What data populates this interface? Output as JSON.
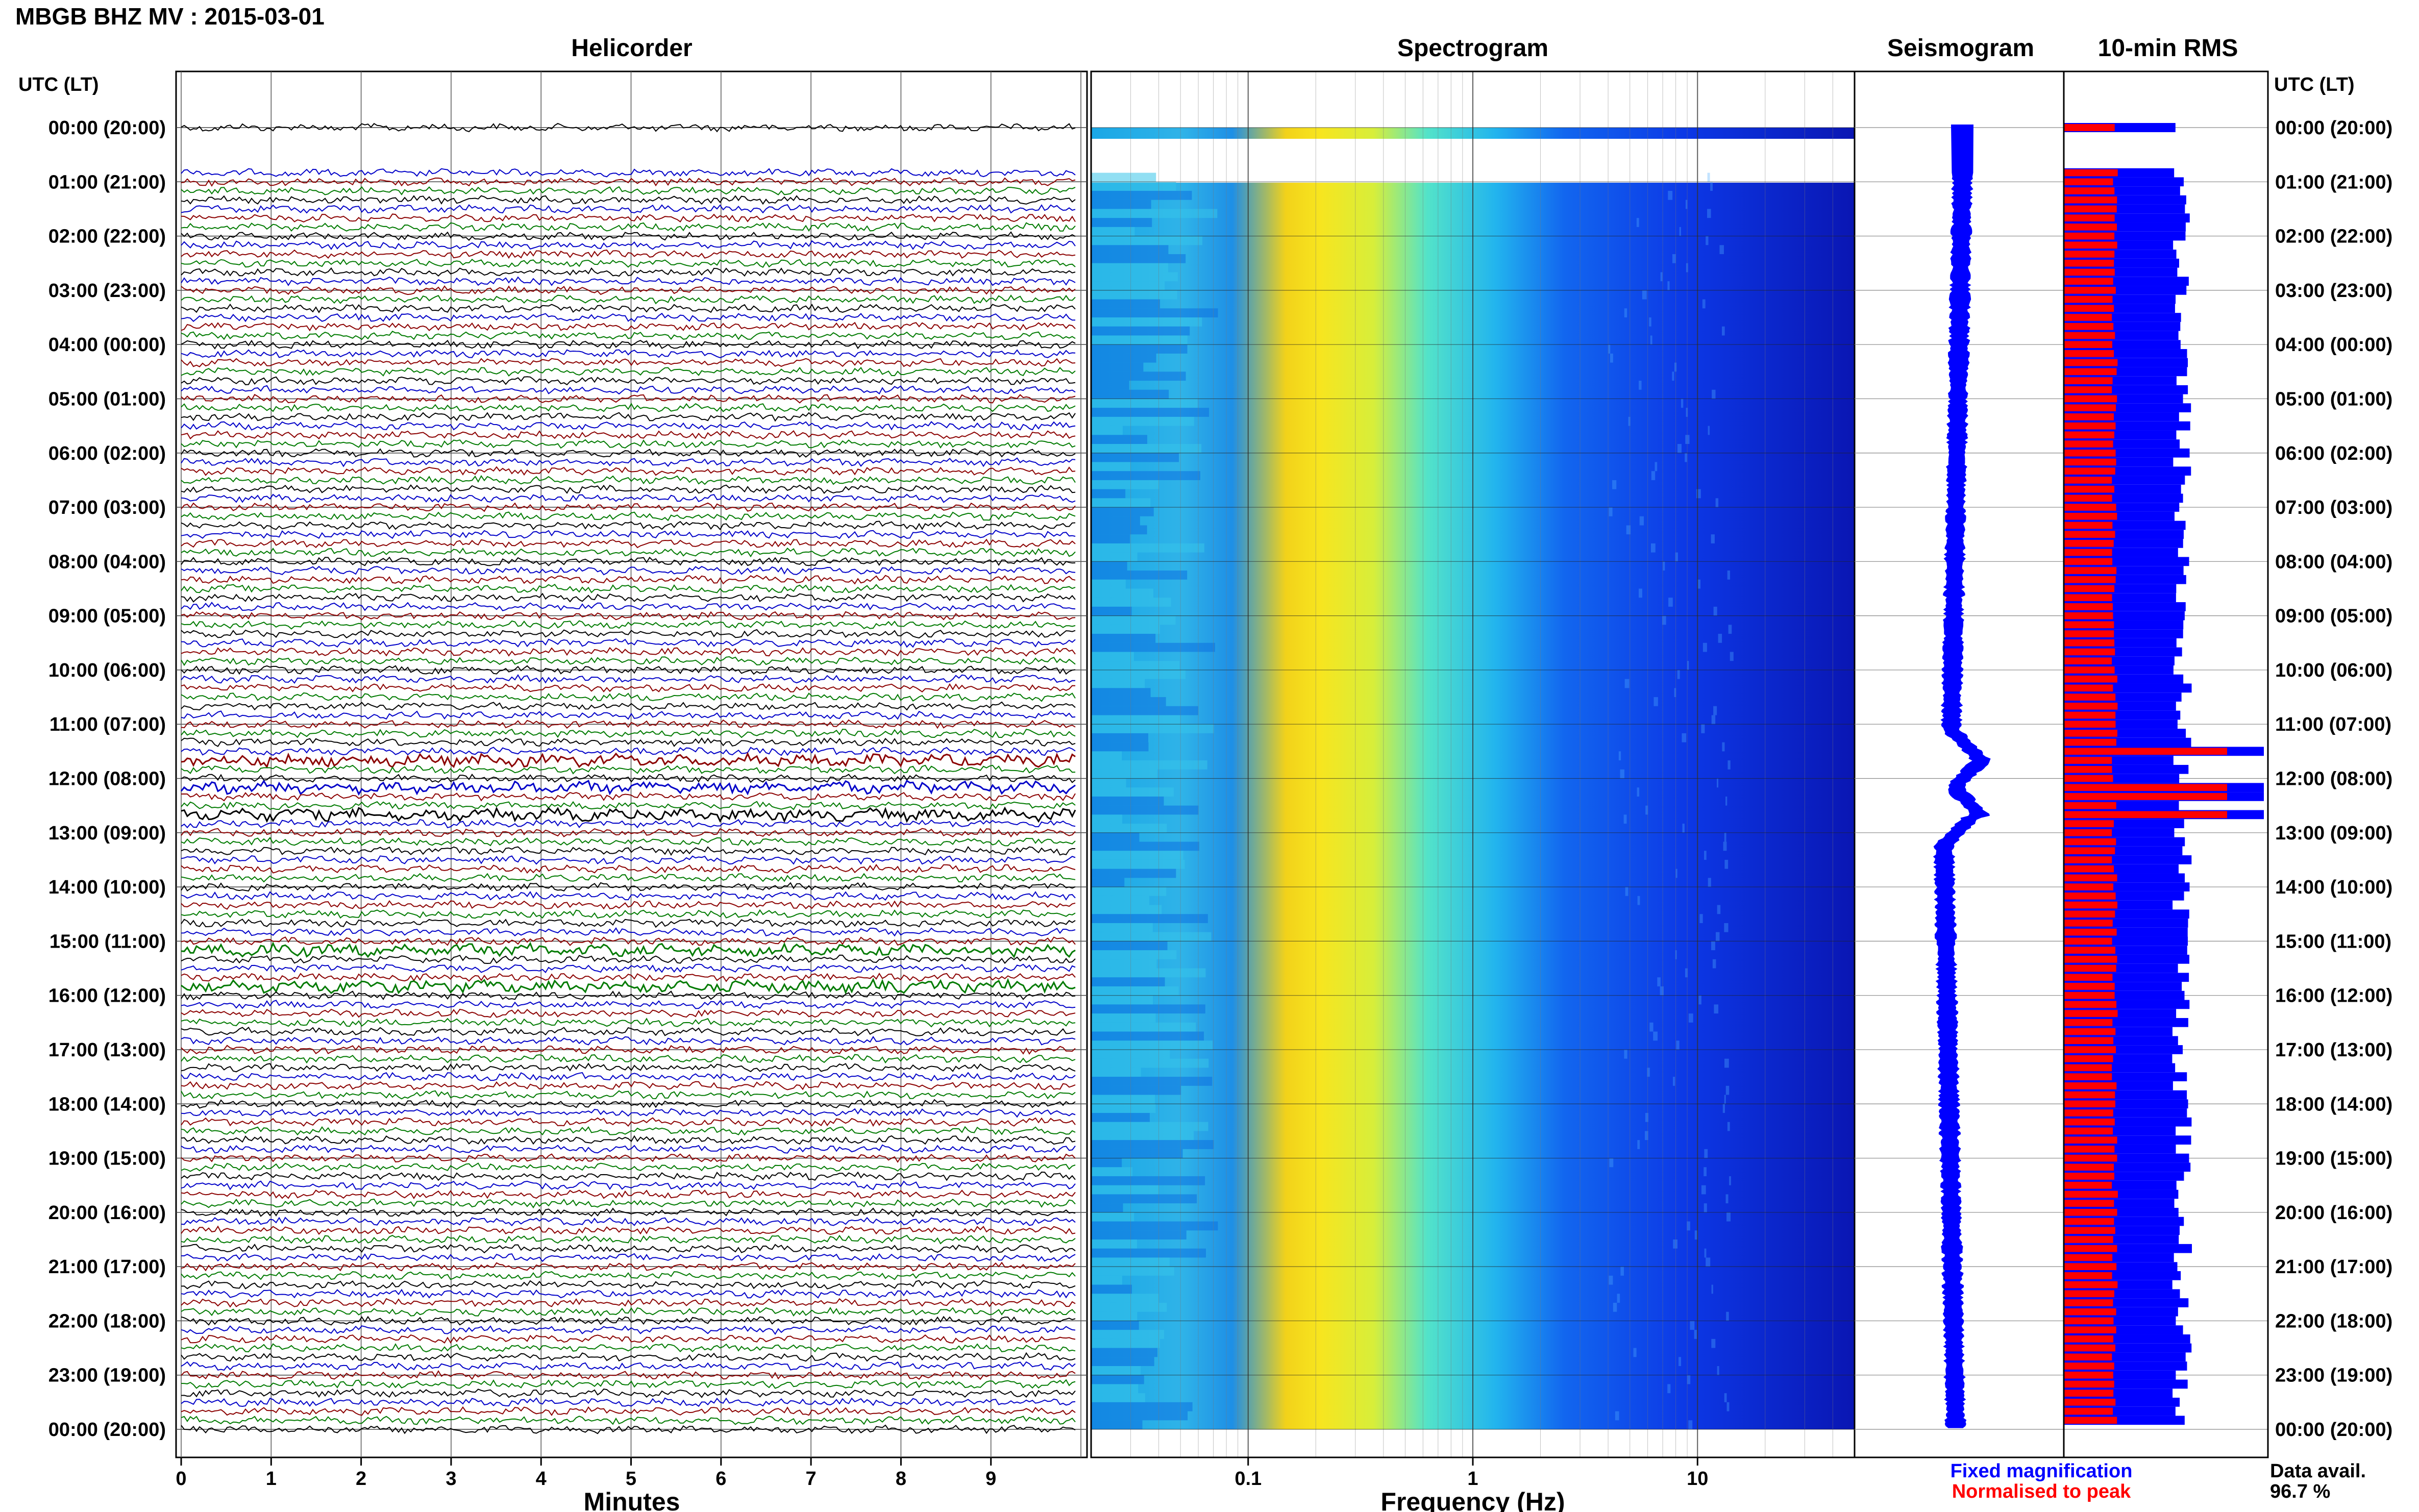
{
  "header": {
    "title": "MBGB BHZ MV : 2015-03-01"
  },
  "panels": {
    "helicorder": "Helicorder",
    "spectrogram": "Spectrogram",
    "seismogram": "Seismogram",
    "rms": "10-min RMS"
  },
  "time_axis": {
    "label": "UTC (LT)",
    "hours": [
      "00:00 (20:00)",
      "01:00 (21:00)",
      "02:00 (22:00)",
      "03:00 (23:00)",
      "04:00 (00:00)",
      "05:00 (01:00)",
      "06:00 (02:00)",
      "07:00 (03:00)",
      "08:00 (04:00)",
      "09:00 (05:00)",
      "10:00 (06:00)",
      "11:00 (07:00)",
      "12:00 (08:00)",
      "13:00 (09:00)",
      "14:00 (10:00)",
      "15:00 (11:00)",
      "16:00 (12:00)",
      "17:00 (13:00)",
      "18:00 (14:00)",
      "19:00 (15:00)",
      "20:00 (16:00)",
      "21:00 (17:00)",
      "22:00 (18:00)",
      "23:00 (19:00)",
      "00:00 (20:00)"
    ]
  },
  "helicorder_axis": {
    "label": "Minutes",
    "ticks": [
      "0",
      "1",
      "2",
      "3",
      "4",
      "5",
      "6",
      "7",
      "8",
      "9"
    ]
  },
  "spectrogram_axis": {
    "label": "Frequency (Hz)",
    "ticks": [
      "0.1",
      "1",
      "10"
    ]
  },
  "legend": {
    "fixed": "Fixed magnification",
    "normalised": "Normalised to peak",
    "avail_label": "Data avail.",
    "avail_value": "96.7 %"
  },
  "colors": {
    "trace_cycle": [
      "#000000",
      "#0000c8",
      "#8b0000",
      "#007a00"
    ],
    "rms_fixed": "#0000ff",
    "rms_normalised": "#ff0000",
    "seismogram": "#0000ff"
  },
  "chart_data": [
    {
      "type": "line",
      "title": "Helicorder",
      "xlabel": "Minutes",
      "ylabel": "UTC (LT)",
      "xlim": [
        0,
        10
      ],
      "lines_per_hour": 6,
      "data_gap": {
        "from_utc": "00:10",
        "to_utc": "00:50"
      },
      "events_utc": [
        "11:40",
        "12:10",
        "12:40",
        "15:10",
        "15:50"
      ]
    },
    {
      "type": "heatmap",
      "title": "Spectrogram",
      "xlabel": "Frequency (Hz)",
      "x_scale": "log",
      "xlim": [
        0.02,
        50
      ],
      "peak_band_hz": [
        0.17,
        0.5
      ]
    },
    {
      "type": "line",
      "title": "Seismogram",
      "events_utc": [
        "11:40",
        "12:40"
      ]
    },
    {
      "type": "bar",
      "title": "10-min RMS",
      "interval_min": 10,
      "series": [
        {
          "name": "Fixed magnification",
          "relative_level": 0.58,
          "peak_times_utc": [
            "11:30",
            "12:10",
            "12:20",
            "12:40"
          ]
        },
        {
          "name": "Normalised to peak",
          "relative_level": 0.25
        }
      ]
    }
  ]
}
